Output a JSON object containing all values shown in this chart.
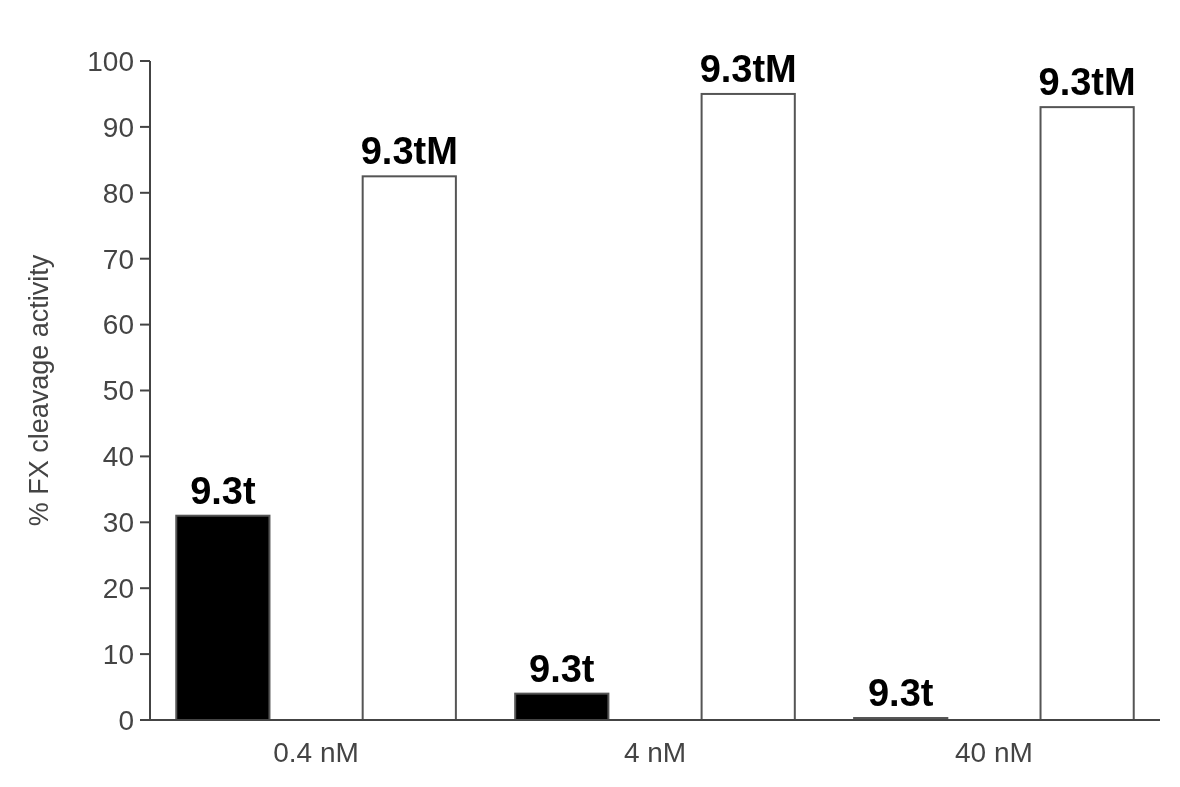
{
  "chart_data": {
    "type": "bar",
    "ylabel": "% FX cleavage activity",
    "categories": [
      "0.4 nM",
      "4 nM",
      "40 nM"
    ],
    "series": [
      {
        "name": "9.3t",
        "color": "#000000",
        "values": [
          31,
          4,
          0.3
        ]
      },
      {
        "name": "9.3tM",
        "color": "#ffffff",
        "values": [
          82.5,
          95,
          93
        ]
      }
    ],
    "ylim": [
      0,
      100
    ],
    "yticks": [
      0,
      10,
      20,
      30,
      40,
      50,
      60,
      70,
      80,
      90,
      100
    ],
    "grid": false
  }
}
